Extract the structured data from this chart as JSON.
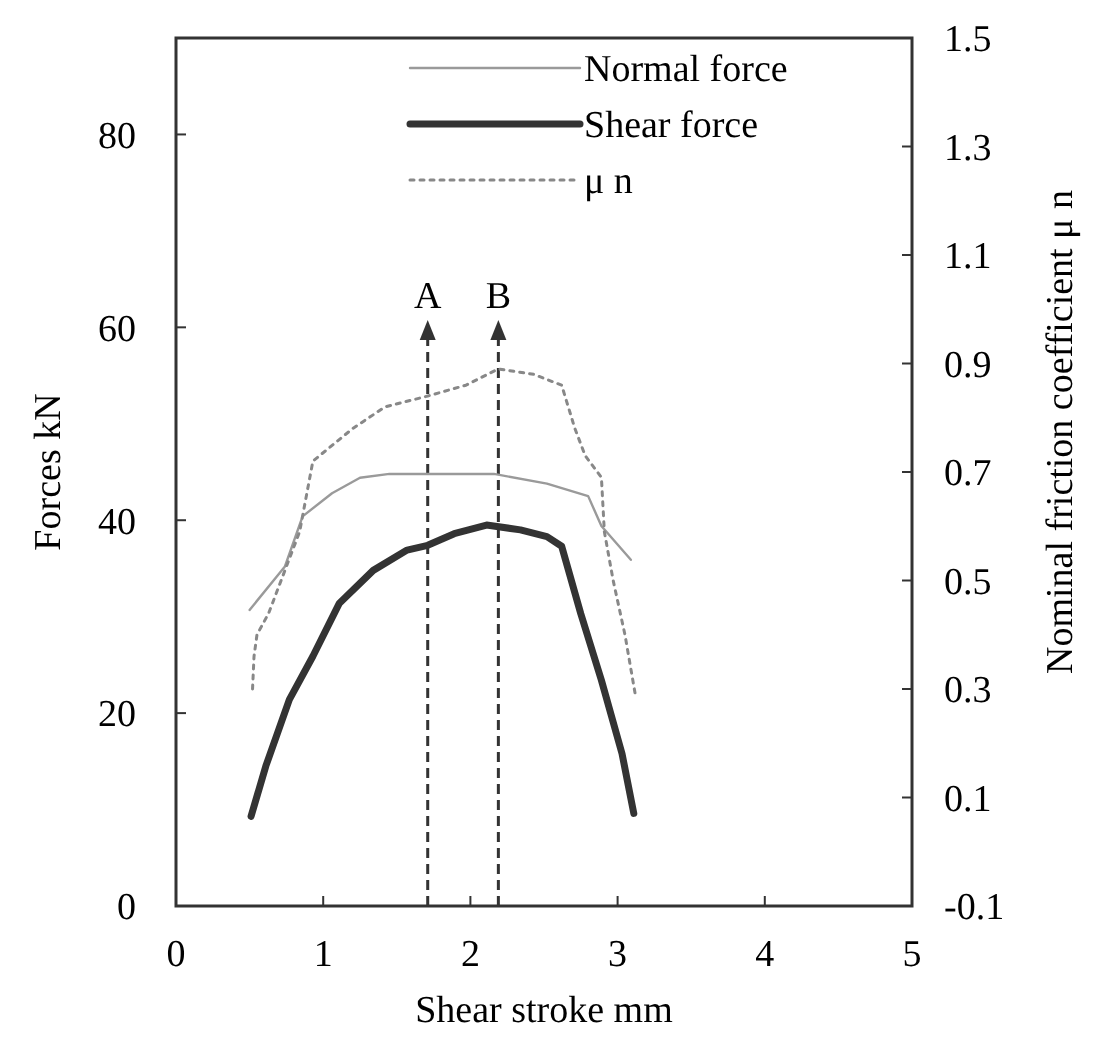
{
  "chart_data": {
    "type": "line",
    "xlabel": "Shear stroke mm",
    "ylabel": "Forces kN",
    "y2label": "Nominal friction coefficient μ n",
    "xlim": [
      0,
      5
    ],
    "xticks": [
      0,
      1,
      2,
      3,
      4,
      5
    ],
    "ylim": [
      0,
      90
    ],
    "yticks": [
      0,
      20,
      40,
      60,
      80
    ],
    "y2lim": [
      -0.1,
      1.5
    ],
    "y2ticks": [
      -0.1,
      0.1,
      0.3,
      0.5,
      0.7,
      0.9,
      1.1,
      1.3,
      1.5
    ],
    "grid": false,
    "legend": "top right",
    "ref_lines": [
      {
        "axis": "x",
        "value": 1.71,
        "label": "A",
        "line_style": "dashed",
        "color": "#333333"
      },
      {
        "axis": "x",
        "value": 2.19,
        "label": "B",
        "line_style": "dashed",
        "color": "#333333"
      }
    ],
    "series": [
      {
        "name": "Normal force",
        "color": "#9a9a9a",
        "line_style": "solid",
        "x": [
          0.5,
          0.74,
          0.86,
          1.06,
          1.25,
          1.45,
          2.16,
          2.52,
          2.8,
          2.89,
          3.09
        ],
        "values": [
          30.7,
          35.2,
          40.4,
          42.8,
          44.4,
          44.8,
          44.8,
          43.8,
          42.5,
          39.4,
          35.9
        ]
      },
      {
        "name": "Shear force",
        "color": "#333333",
        "line_style": "solid",
        "x": [
          0.51,
          0.61,
          0.77,
          0.93,
          1.11,
          1.34,
          1.57,
          1.71,
          1.89,
          2.11,
          2.34,
          2.52,
          2.62,
          2.75,
          2.89,
          3.03,
          3.11
        ],
        "values": [
          9.3,
          14.5,
          21.4,
          25.9,
          31.4,
          34.8,
          36.9,
          37.4,
          38.6,
          39.5,
          39.0,
          38.3,
          37.3,
          30.3,
          23.4,
          15.8,
          9.6
        ]
      },
      {
        "name": "μ n",
        "color": "#888888",
        "line_style": "dotted",
        "axis": "y2",
        "x": [
          0.52,
          0.53,
          0.55,
          0.63,
          0.84,
          0.93,
          1.2,
          1.42,
          1.71,
          1.97,
          2.19,
          2.43,
          2.62,
          2.71,
          2.78,
          2.89,
          2.91,
          2.97,
          3.05,
          3.12
        ],
        "values": [
          0.3,
          0.36,
          0.4,
          0.44,
          0.59,
          0.72,
          0.78,
          0.82,
          0.84,
          0.86,
          0.89,
          0.88,
          0.86,
          0.78,
          0.73,
          0.69,
          0.59,
          0.5,
          0.4,
          0.29
        ]
      }
    ]
  }
}
